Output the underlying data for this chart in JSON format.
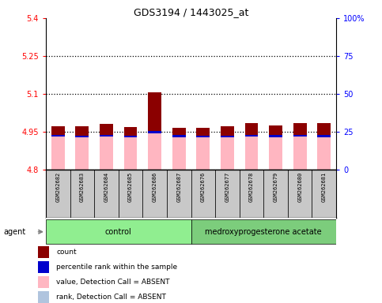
{
  "title": "GDS3194 / 1443025_at",
  "samples": [
    "GSM262682",
    "GSM262683",
    "GSM262684",
    "GSM262685",
    "GSM262686",
    "GSM262687",
    "GSM262676",
    "GSM262677",
    "GSM262678",
    "GSM262679",
    "GSM262680",
    "GSM262681"
  ],
  "groups": [
    "control",
    "control",
    "control",
    "control",
    "control",
    "control",
    "medroxyprogesterone acetate",
    "medroxyprogesterone acetate",
    "medroxyprogesterone acetate",
    "medroxyprogesterone acetate",
    "medroxyprogesterone acetate",
    "medroxyprogesterone acetate"
  ],
  "pink_bar_top": [
    4.971,
    4.971,
    4.982,
    4.969,
    5.105,
    4.966,
    4.967,
    4.971,
    4.983,
    4.974,
    4.983,
    4.986
  ],
  "pink_bar_bottom": 4.8,
  "light_blue_bottom": [
    4.93,
    4.927,
    4.931,
    4.928,
    4.944,
    4.927,
    4.927,
    4.927,
    4.93,
    4.929,
    4.93,
    4.929
  ],
  "light_blue_height": [
    0.008,
    0.008,
    0.008,
    0.008,
    0.01,
    0.01,
    0.008,
    0.008,
    0.008,
    0.008,
    0.008,
    0.008
  ],
  "dark_red_top": [
    4.971,
    4.971,
    4.982,
    4.969,
    5.105,
    4.966,
    4.967,
    4.971,
    4.983,
    4.974,
    4.983,
    4.986
  ],
  "dark_red_bottom": [
    4.93,
    4.927,
    4.931,
    4.928,
    4.944,
    4.927,
    4.927,
    4.927,
    4.93,
    4.929,
    4.93,
    4.929
  ],
  "blue_bottom": [
    4.93,
    4.927,
    4.931,
    4.928,
    4.944,
    4.927,
    4.927,
    4.927,
    4.93,
    4.929,
    4.93,
    4.929
  ],
  "blue_height": [
    0.008,
    0.008,
    0.008,
    0.008,
    0.01,
    0.01,
    0.008,
    0.008,
    0.008,
    0.008,
    0.008,
    0.008
  ],
  "ylim": [
    4.8,
    5.4
  ],
  "yticks": [
    4.8,
    4.95,
    5.1,
    5.25,
    5.4
  ],
  "ytick_labels": [
    "4.8",
    "4.95",
    "5.1",
    "5.25",
    "5.4"
  ],
  "y2ticks_pct": [
    0,
    25,
    50,
    75,
    100
  ],
  "y2tick_labels": [
    "0",
    "25",
    "50",
    "75",
    "100%"
  ],
  "y_min": 4.8,
  "y_max": 5.4,
  "dotted_lines": [
    4.95,
    5.1,
    5.25
  ],
  "bar_width": 0.55,
  "pink_color": "#FFB6C1",
  "light_blue_color": "#B0C4DE",
  "dark_red_color": "#8B0000",
  "blue_color": "#0000CC",
  "gray_cell_color": "#C8C8C8",
  "control_green": "#90EE90",
  "treatment_green": "#7CCD7C",
  "legend_items": [
    {
      "color": "#8B0000",
      "label": "count"
    },
    {
      "color": "#0000CC",
      "label": "percentile rank within the sample"
    },
    {
      "color": "#FFB6C1",
      "label": "value, Detection Call = ABSENT"
    },
    {
      "color": "#B0C4DE",
      "label": "rank, Detection Call = ABSENT"
    }
  ]
}
